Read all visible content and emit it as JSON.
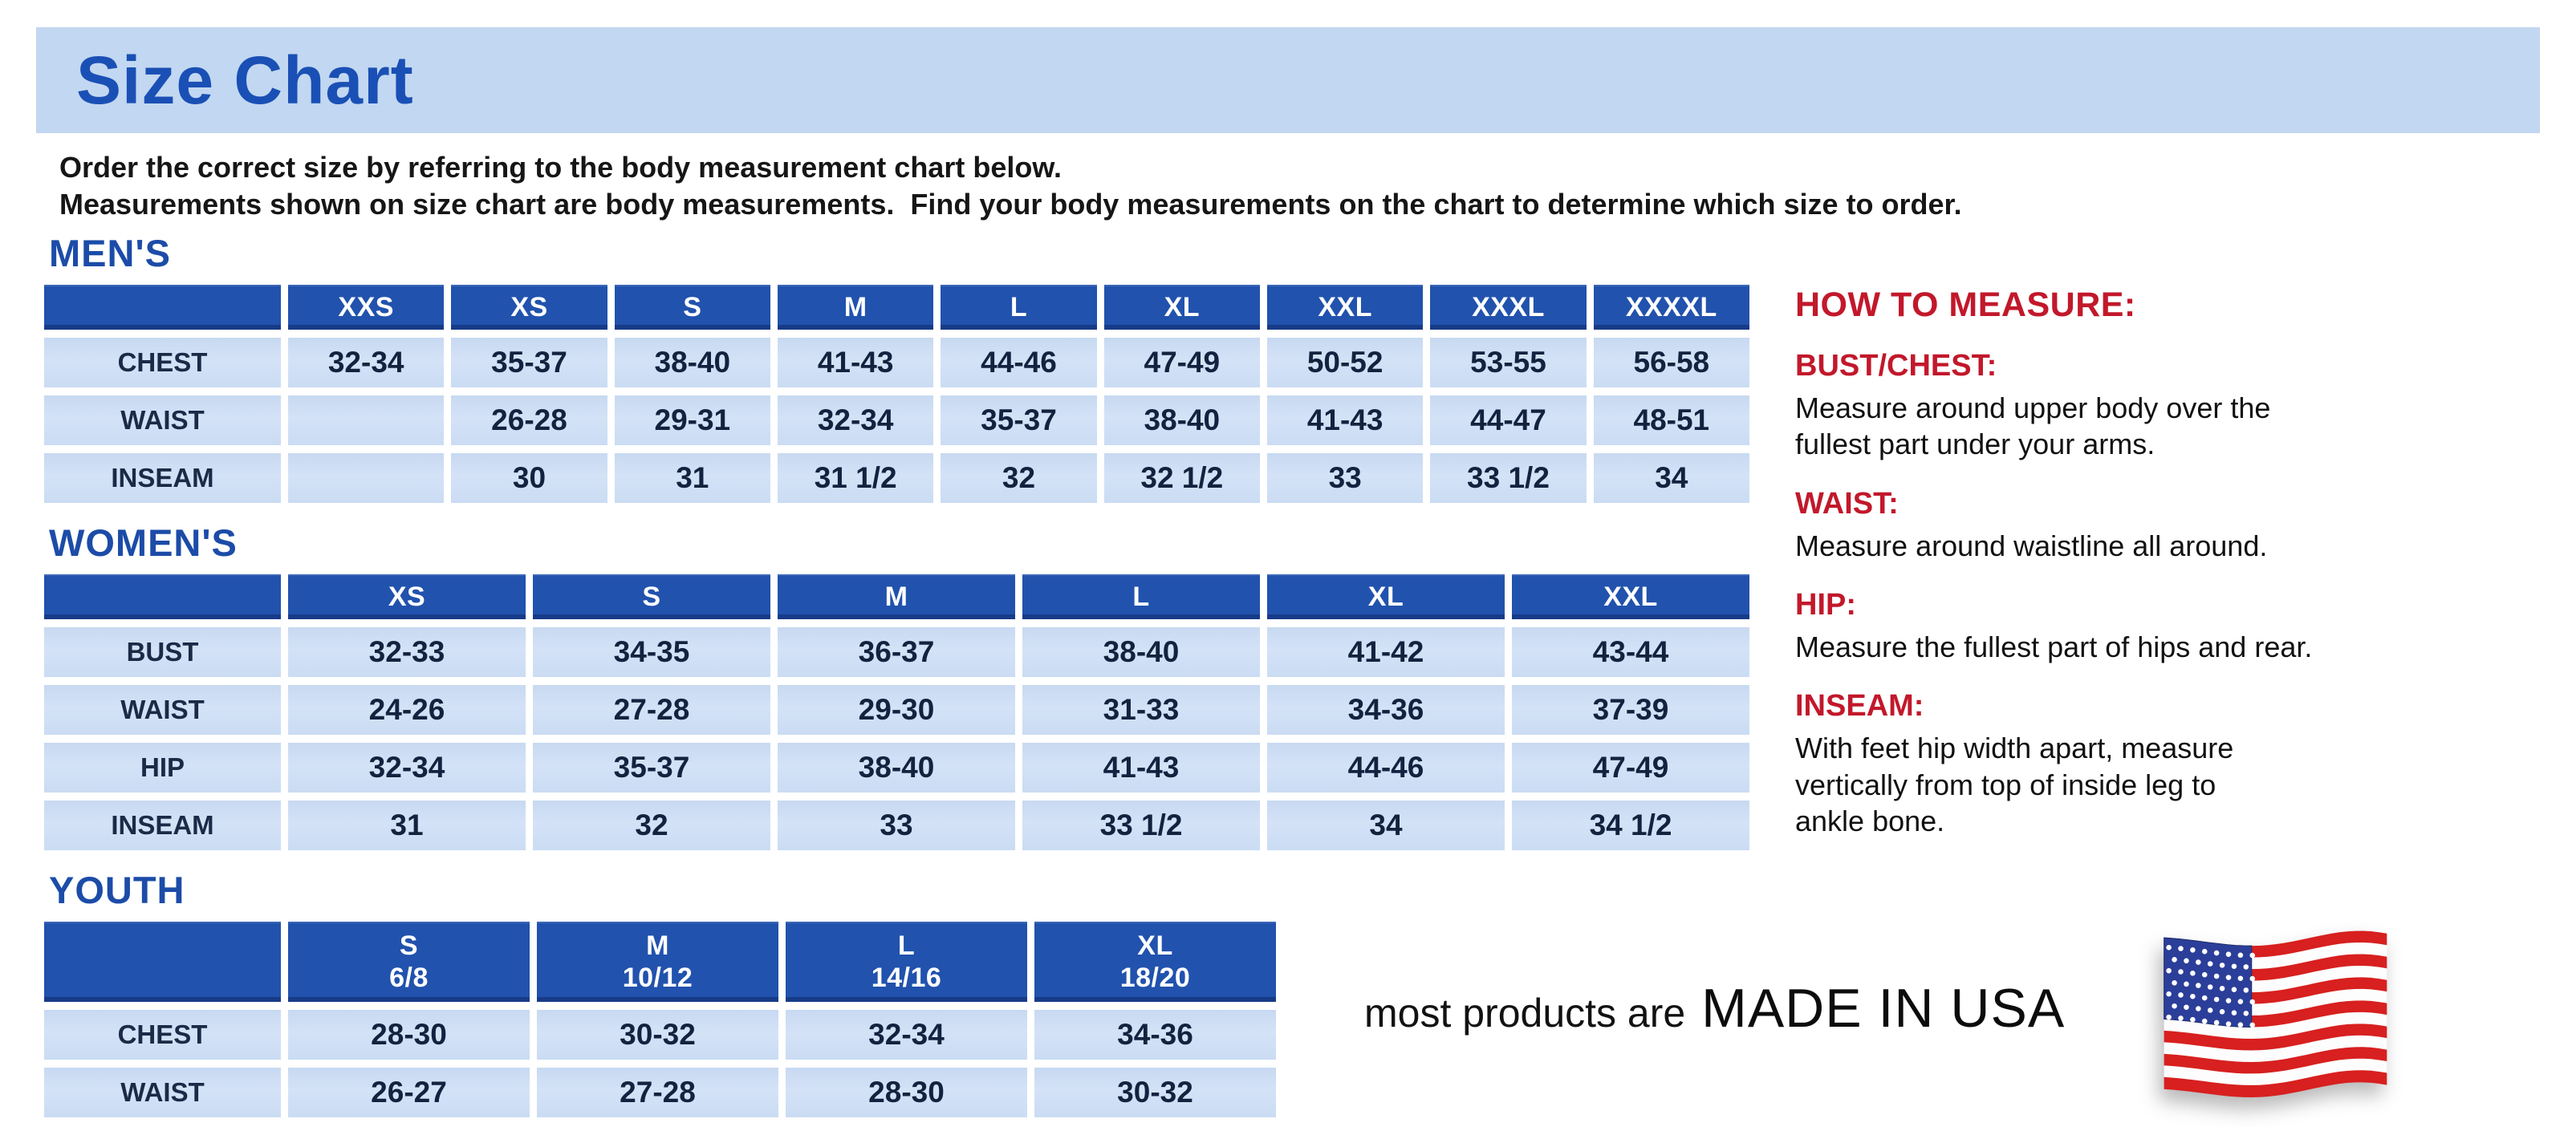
{
  "page": {
    "title": "Size Chart",
    "intro_line1": "Order the correct size by referring to the body measurement chart below.",
    "intro_line2": "Measurements shown on size chart are body measurements.  Find your body measurements on the chart to determine which size to order."
  },
  "colors": {
    "banner_bg": "#c2d7f1",
    "title_blue": "#1a50b5",
    "heading_blue": "#1c4ca8",
    "table_header_bg": "#2152ad",
    "cell_bg": "#cddef4",
    "cell_text": "#13223e",
    "accent_red": "#c2182b",
    "flag_red": "#d7201f",
    "flag_navy": "#2b3e99",
    "flag_white": "#fdfdfd"
  },
  "tables": [
    {
      "id": "mens",
      "heading": "MEN'S",
      "columns": [
        "XXS",
        "XS",
        "S",
        "M",
        "L",
        "XL",
        "XXL",
        "XXXL",
        "XXXXL"
      ],
      "rows": [
        {
          "label": "CHEST",
          "values": [
            "32-34",
            "35-37",
            "38-40",
            "41-43",
            "44-46",
            "47-49",
            "50-52",
            "53-55",
            "56-58"
          ]
        },
        {
          "label": "WAIST",
          "values": [
            "",
            "26-28",
            "29-31",
            "32-34",
            "35-37",
            "38-40",
            "41-43",
            "44-47",
            "48-51"
          ]
        },
        {
          "label": "INSEAM",
          "values": [
            "",
            "30",
            "31",
            "31 1/2",
            "32",
            "32 1/2",
            "33",
            "33 1/2",
            "34"
          ]
        }
      ]
    },
    {
      "id": "womens",
      "heading": "WOMEN'S",
      "columns": [
        "XS",
        "S",
        "M",
        "L",
        "XL",
        "XXL"
      ],
      "rows": [
        {
          "label": "BUST",
          "values": [
            "32-33",
            "34-35",
            "36-37",
            "38-40",
            "41-42",
            "43-44"
          ]
        },
        {
          "label": "WAIST",
          "values": [
            "24-26",
            "27-28",
            "29-30",
            "31-33",
            "34-36",
            "37-39"
          ]
        },
        {
          "label": "HIP",
          "values": [
            "32-34",
            "35-37",
            "38-40",
            "41-43",
            "44-46",
            "47-49"
          ]
        },
        {
          "label": "INSEAM",
          "values": [
            "31",
            "32",
            "33",
            "33 1/2",
            "34",
            "34 1/2"
          ]
        }
      ]
    },
    {
      "id": "youth",
      "heading": "YOUTH",
      "columns": [
        "S\n6/8",
        "M\n10/12",
        "L\n14/16",
        "XL\n18/20"
      ],
      "rows": [
        {
          "label": "CHEST",
          "values": [
            "28-30",
            "30-32",
            "32-34",
            "34-36"
          ]
        },
        {
          "label": "WAIST",
          "values": [
            "26-27",
            "27-28",
            "28-30",
            "30-32"
          ]
        }
      ]
    }
  ],
  "how_to_measure": {
    "title": "HOW TO MEASURE:",
    "sections": [
      {
        "label": "BUST/CHEST:",
        "text": "Measure around upper body over the\nfullest part under your arms."
      },
      {
        "label": "WAIST:",
        "text": "Measure around waistline all around."
      },
      {
        "label": "HIP:",
        "text": "Measure the fullest part of hips and rear."
      },
      {
        "label": "INSEAM:",
        "text": "With feet hip width apart, measure\nvertically from top of inside leg to\nankle bone."
      }
    ]
  },
  "footer": {
    "prefix": "most products are",
    "emphasis": "MADE IN USA",
    "flag_icon": "us-flag-icon"
  }
}
